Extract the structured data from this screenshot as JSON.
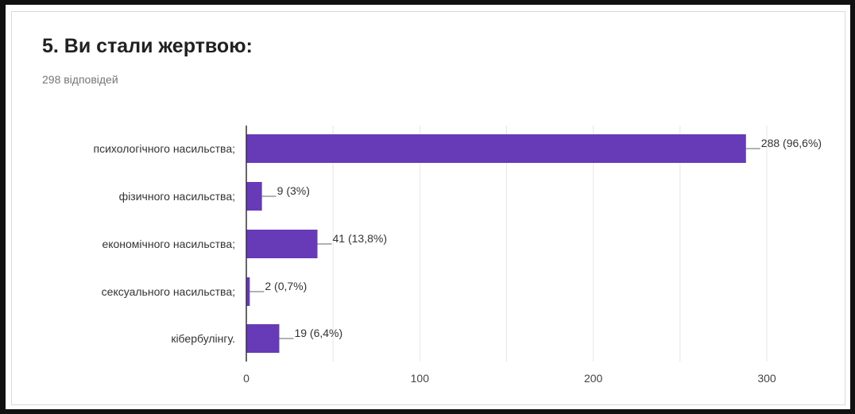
{
  "title": "5. Ви стали жертвою:",
  "subtitle": "298 відповідей",
  "colors": {
    "bar": "#673ab7",
    "grid": "#e6e6e6",
    "axis": "#333333",
    "leader": "#666666"
  },
  "chart_data": {
    "type": "bar",
    "orientation": "horizontal",
    "categories": [
      "психологічного насильства;",
      "фізичного насильства;",
      "економічного насильства;",
      "сексуального насильства;",
      "кібербулінгу."
    ],
    "values": [
      288,
      9,
      41,
      2,
      19
    ],
    "data_labels": [
      "288 (96,6%)",
      "9 (3%)",
      "41 (13,8%)",
      "2 (0,7%)",
      "19 (6,4%)"
    ],
    "xlim": [
      0,
      300
    ],
    "xticks": [
      0,
      100,
      200,
      300
    ],
    "grid": true,
    "title": "5. Ви стали жертвою:",
    "subtitle": "298 відповідей"
  }
}
